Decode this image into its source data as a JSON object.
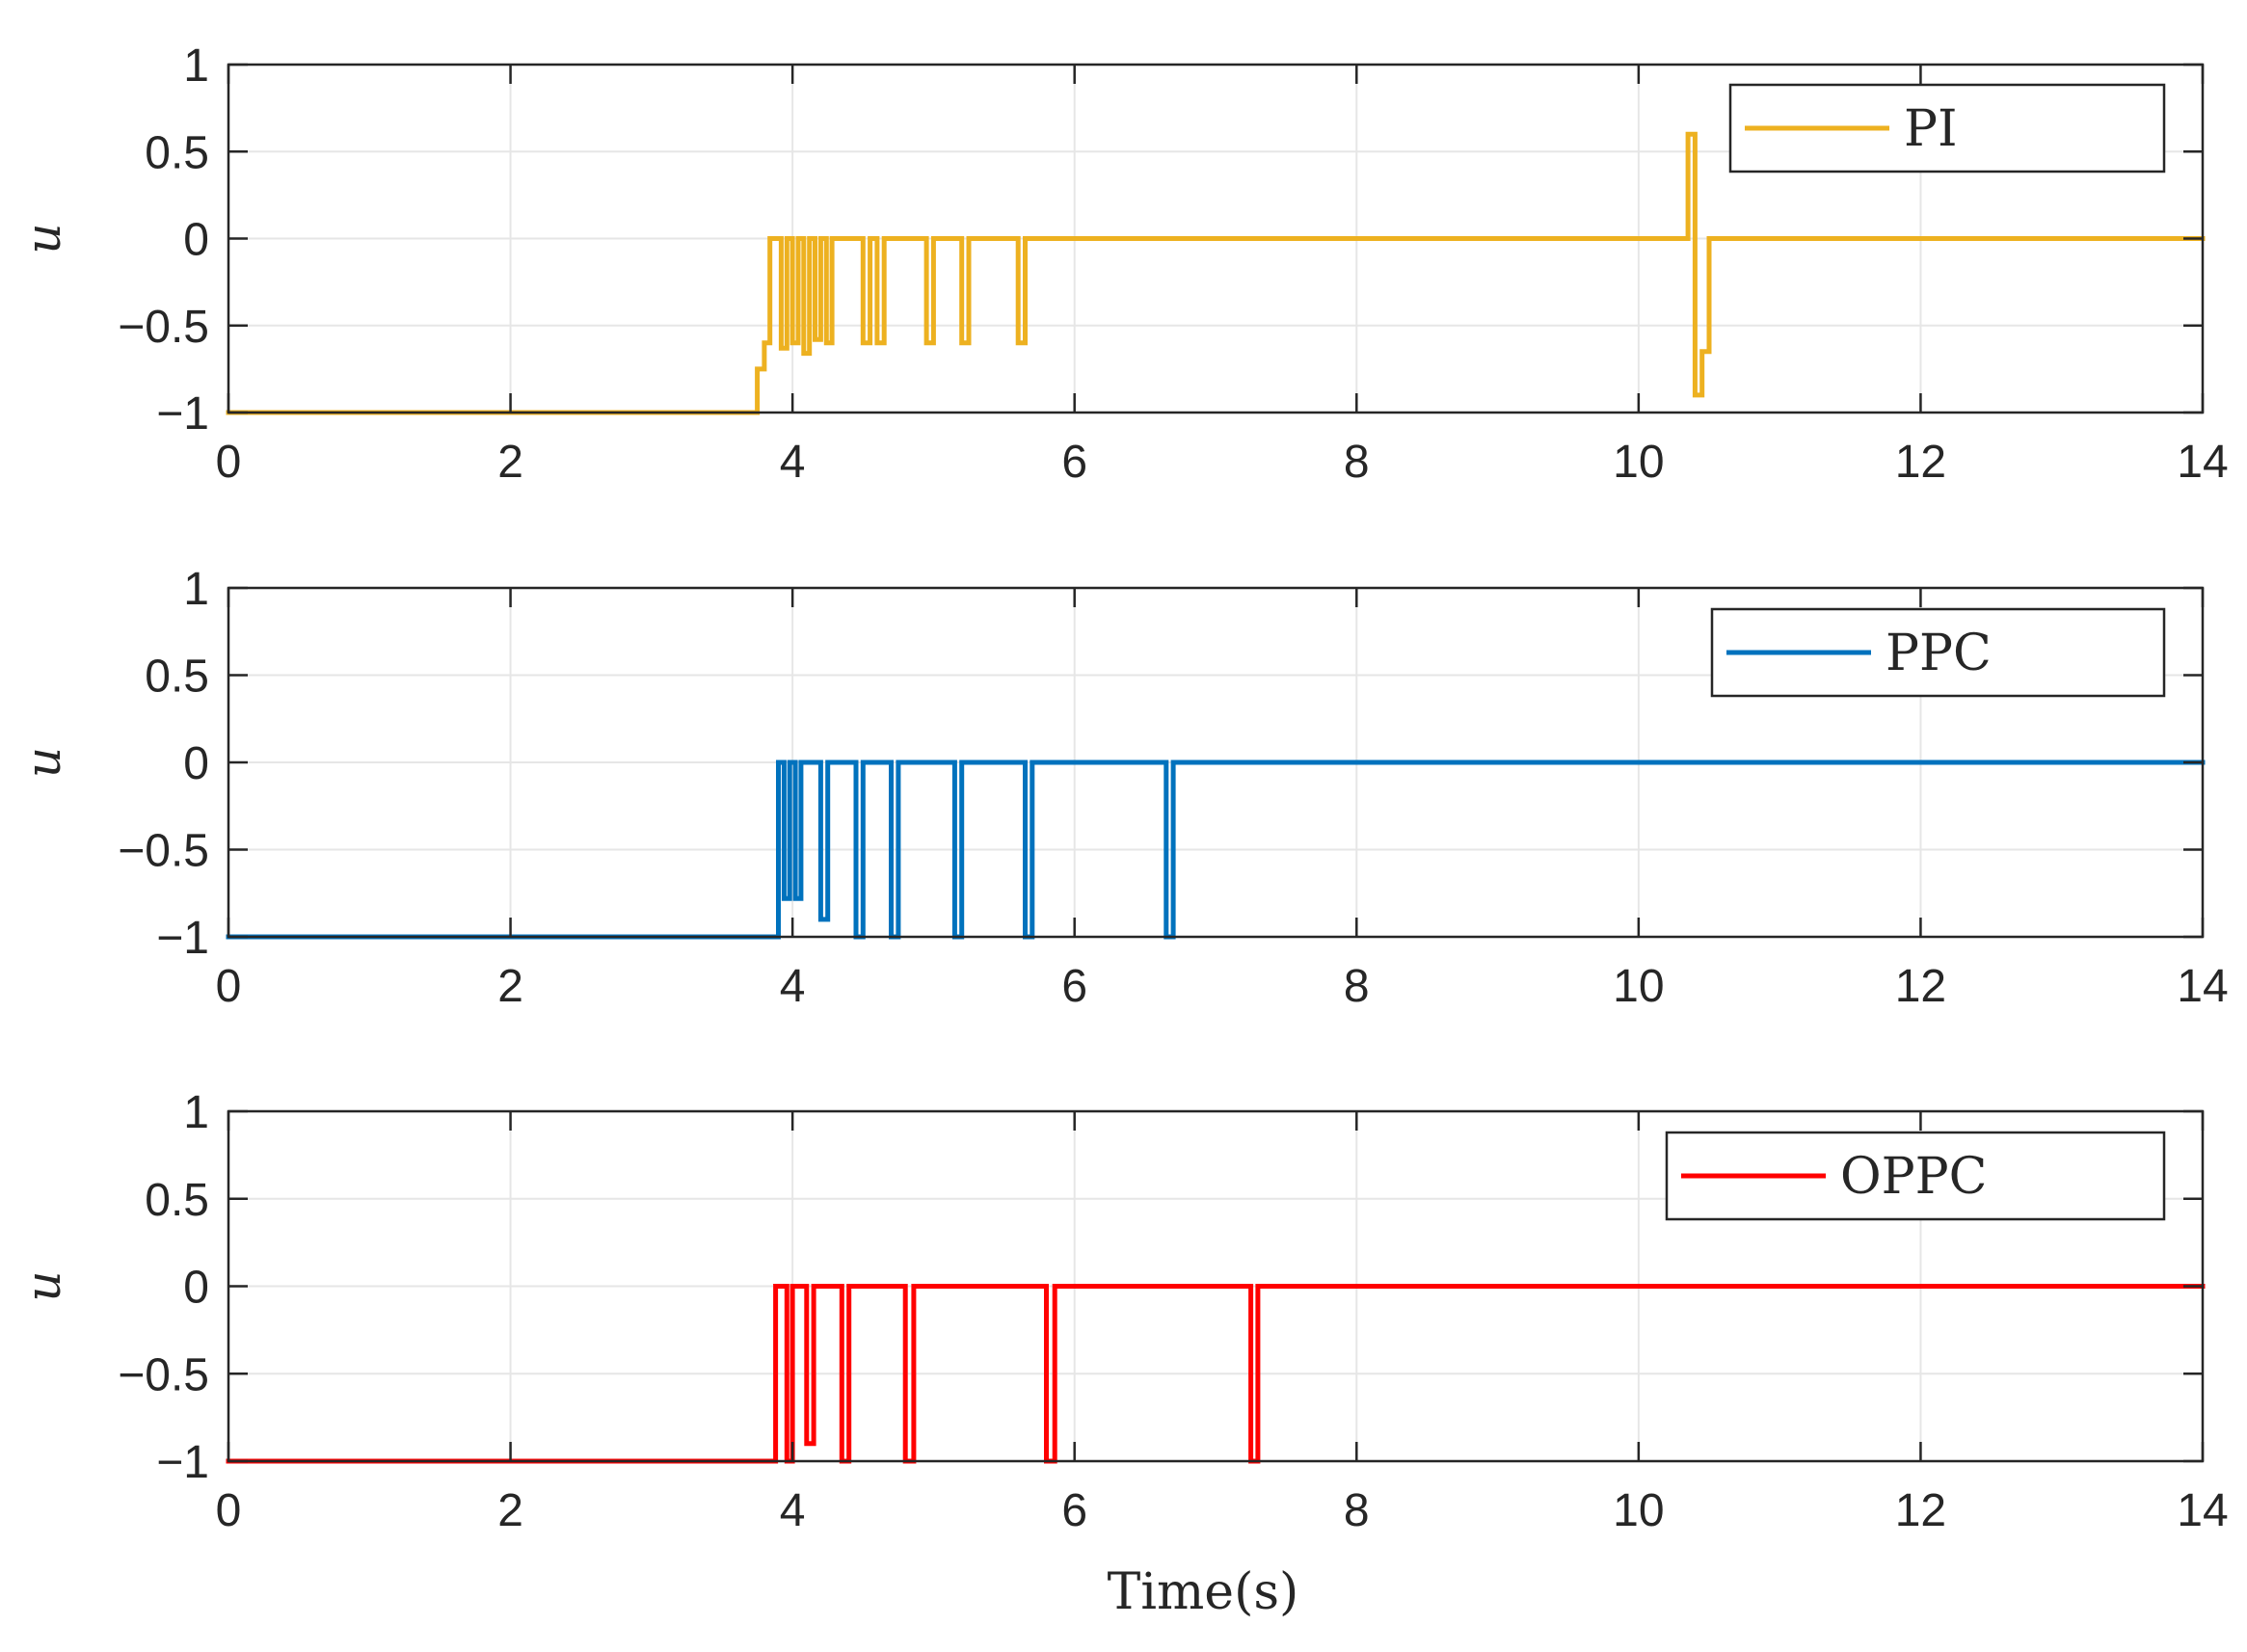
{
  "chart_data": [
    {
      "type": "line",
      "ylabel": "u",
      "xlabel": "",
      "xlim": [
        0,
        14
      ],
      "ylim": [
        -1,
        1
      ],
      "xticks": [
        "0",
        "2",
        "4",
        "6",
        "8",
        "10",
        "12",
        "14"
      ],
      "yticks": [
        "1",
        "0.5",
        "0",
        "−0.5",
        "−1"
      ],
      "grid": true,
      "legend_position": "top-right",
      "series": [
        {
          "name": "PI",
          "color": "#EDB120",
          "step": true,
          "points": [
            [
              0,
              -1
            ],
            [
              3.75,
              -1
            ],
            [
              3.75,
              -0.75
            ],
            [
              3.8,
              -0.75
            ],
            [
              3.8,
              -0.6
            ],
            [
              3.84,
              -0.6
            ],
            [
              3.84,
              0
            ],
            [
              3.92,
              0
            ],
            [
              3.92,
              -0.63
            ],
            [
              3.96,
              -0.63
            ],
            [
              3.96,
              0
            ],
            [
              4.0,
              0
            ],
            [
              4.0,
              -0.6
            ],
            [
              4.04,
              -0.6
            ],
            [
              4.04,
              0
            ],
            [
              4.08,
              0
            ],
            [
              4.08,
              -0.66
            ],
            [
              4.12,
              -0.66
            ],
            [
              4.12,
              0
            ],
            [
              4.16,
              0
            ],
            [
              4.16,
              -0.58
            ],
            [
              4.2,
              -0.58
            ],
            [
              4.2,
              0
            ],
            [
              4.24,
              0
            ],
            [
              4.24,
              -0.6
            ],
            [
              4.28,
              -0.6
            ],
            [
              4.28,
              0
            ],
            [
              4.5,
              0
            ],
            [
              4.5,
              -0.6
            ],
            [
              4.55,
              -0.6
            ],
            [
              4.55,
              0
            ],
            [
              4.6,
              0
            ],
            [
              4.6,
              -0.6
            ],
            [
              4.65,
              -0.6
            ],
            [
              4.65,
              0
            ],
            [
              4.95,
              0
            ],
            [
              4.95,
              -0.6
            ],
            [
              5.0,
              -0.6
            ],
            [
              5.0,
              0
            ],
            [
              5.2,
              0
            ],
            [
              5.2,
              -0.6
            ],
            [
              5.25,
              -0.6
            ],
            [
              5.25,
              0
            ],
            [
              5.6,
              0
            ],
            [
              5.6,
              -0.6
            ],
            [
              5.65,
              -0.6
            ],
            [
              5.65,
              0
            ],
            [
              10.35,
              0
            ],
            [
              10.35,
              0.6
            ],
            [
              10.4,
              0.6
            ],
            [
              10.4,
              -0.9
            ],
            [
              10.45,
              -0.9
            ],
            [
              10.45,
              -0.65
            ],
            [
              10.5,
              -0.65
            ],
            [
              10.5,
              0
            ],
            [
              14,
              0
            ]
          ]
        }
      ]
    },
    {
      "type": "line",
      "ylabel": "u",
      "xlabel": "",
      "xlim": [
        0,
        14
      ],
      "ylim": [
        -1,
        1
      ],
      "xticks": [
        "0",
        "2",
        "4",
        "6",
        "8",
        "10",
        "12",
        "14"
      ],
      "yticks": [
        "1",
        "0.5",
        "0",
        "−0.5",
        "−1"
      ],
      "grid": true,
      "legend_position": "top-right",
      "series": [
        {
          "name": "PPC",
          "color": "#0072BD",
          "step": true,
          "points": [
            [
              0,
              -1
            ],
            [
              3.9,
              -1
            ],
            [
              3.9,
              0
            ],
            [
              3.94,
              0
            ],
            [
              3.94,
              -0.78
            ],
            [
              3.98,
              -0.78
            ],
            [
              3.98,
              0
            ],
            [
              4.02,
              0
            ],
            [
              4.02,
              -0.78
            ],
            [
              4.06,
              -0.78
            ],
            [
              4.06,
              0
            ],
            [
              4.2,
              0
            ],
            [
              4.2,
              -0.9
            ],
            [
              4.25,
              -0.9
            ],
            [
              4.25,
              0
            ],
            [
              4.45,
              0
            ],
            [
              4.45,
              -1
            ],
            [
              4.5,
              -1
            ],
            [
              4.5,
              0
            ],
            [
              4.7,
              0
            ],
            [
              4.7,
              -1
            ],
            [
              4.75,
              -1
            ],
            [
              4.75,
              0
            ],
            [
              5.15,
              0
            ],
            [
              5.15,
              -1
            ],
            [
              5.2,
              -1
            ],
            [
              5.2,
              0
            ],
            [
              5.65,
              0
            ],
            [
              5.65,
              -1
            ],
            [
              5.7,
              -1
            ],
            [
              5.7,
              0
            ],
            [
              6.65,
              0
            ],
            [
              6.65,
              -1
            ],
            [
              6.7,
              -1
            ],
            [
              6.7,
              0
            ],
            [
              14,
              0
            ]
          ]
        }
      ]
    },
    {
      "type": "line",
      "ylabel": "u",
      "xlabel": "Time(s)",
      "xlim": [
        0,
        14
      ],
      "ylim": [
        -1,
        1
      ],
      "xticks": [
        "0",
        "2",
        "4",
        "6",
        "8",
        "10",
        "12",
        "14"
      ],
      "yticks": [
        "1",
        "0.5",
        "0",
        "−0.5",
        "−1"
      ],
      "grid": true,
      "legend_position": "top-right",
      "series": [
        {
          "name": "OPPC",
          "color": "#FF0000",
          "step": true,
          "points": [
            [
              0,
              -1
            ],
            [
              3.88,
              -1
            ],
            [
              3.88,
              0
            ],
            [
              3.96,
              0
            ],
            [
              3.96,
              -1
            ],
            [
              4.0,
              -1
            ],
            [
              4.0,
              0
            ],
            [
              4.1,
              0
            ],
            [
              4.1,
              -0.9
            ],
            [
              4.15,
              -0.9
            ],
            [
              4.15,
              0
            ],
            [
              4.35,
              0
            ],
            [
              4.35,
              -1
            ],
            [
              4.4,
              -1
            ],
            [
              4.4,
              0
            ],
            [
              4.8,
              0
            ],
            [
              4.8,
              -1
            ],
            [
              4.86,
              -1
            ],
            [
              4.86,
              0
            ],
            [
              5.8,
              0
            ],
            [
              5.8,
              -1
            ],
            [
              5.86,
              -1
            ],
            [
              5.86,
              0
            ],
            [
              7.25,
              0
            ],
            [
              7.25,
              -1
            ],
            [
              7.3,
              -1
            ],
            [
              7.3,
              0
            ],
            [
              14,
              0
            ]
          ]
        }
      ]
    }
  ]
}
